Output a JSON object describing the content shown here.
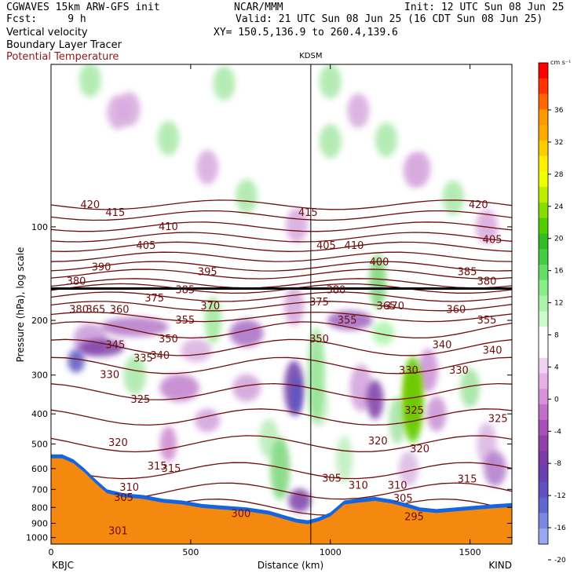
{
  "header": {
    "model": "CGWAVES 15km ARW-GFS init",
    "fcst_label": "Fcst:",
    "fcst_value": "9 h",
    "org": "NCAR/MMM",
    "init": "Init: 12 UTC Sun 08 Jun 25",
    "valid": "Valid: 21 UTC Sun 08 Jun 25 (16 CDT Sun 08 Jun 25)",
    "xy": "XY= 150.5,136.9 to 260.4,139.6",
    "field1": "Vertical velocity",
    "field2": "Boundary Layer Tracer",
    "field3": "Potential Temperature"
  },
  "colors": {
    "theta_contour": "#6e0d0d",
    "terrain": "#f5890f",
    "bl_tracer": "#8b1a1a"
  },
  "chart_data": {
    "type": "heatmap",
    "title": "KDSM",
    "xlabel": "Distance (km)",
    "ylabel": "Pressure (hPa), log scale",
    "xlim": [
      0,
      1650
    ],
    "ylim": [
      1050,
      30
    ],
    "y_scale": "log",
    "x_ticks": [
      0,
      500,
      1000,
      1500
    ],
    "x_tick_labels": [
      "0",
      "500",
      "1000",
      "1500"
    ],
    "y_ticks": [
      100,
      200,
      300,
      400,
      500,
      600,
      700,
      800,
      900,
      1000
    ],
    "y_tick_labels": [
      "100",
      "200",
      "300",
      "400",
      "500",
      "600",
      "700",
      "800",
      "900",
      "1000"
    ],
    "endpoints": {
      "left": "KBJC",
      "right": "KIND"
    },
    "marker": {
      "label": "KDSM",
      "x": 930
    },
    "colorbar": {
      "unit": "cm s⁻¹",
      "labels": [
        "36",
        "32",
        "28",
        "24",
        "20",
        "16",
        "12",
        "8",
        "4",
        "0",
        "-4",
        "-8",
        "-12",
        "-16",
        "-20"
      ],
      "colors": [
        "#ff0000",
        "#ff3300",
        "#ff6600",
        "#ff9900",
        "#ffaa00",
        "#ffcc00",
        "#ffee00",
        "#eeff00",
        "#bbee00",
        "#88dd00",
        "#55cc00",
        "#33bb22",
        "#44cc44",
        "#66dd66",
        "#88ee88",
        "#aaf5aa",
        "#ccfacc",
        "#ffffff",
        "#ffffff",
        "#f2d0f2",
        "#e6b0e6",
        "#d890d8",
        "#c070c8",
        "#a850b8",
        "#9040a8",
        "#7a3aa8",
        "#6a40b0",
        "#6050c0",
        "#6068d0",
        "#7a88e0",
        "#98a8f0"
      ]
    },
    "theta_labels": [
      {
        "x": 140,
        "p": 85,
        "v": "420"
      },
      {
        "x": 230,
        "p": 90,
        "v": "415"
      },
      {
        "x": 340,
        "p": 115,
        "v": "405"
      },
      {
        "x": 420,
        "p": 100,
        "v": "410"
      },
      {
        "x": 560,
        "p": 140,
        "v": "395"
      },
      {
        "x": 180,
        "p": 135,
        "v": "390"
      },
      {
        "x": 370,
        "p": 170,
        "v": "375"
      },
      {
        "x": 480,
        "p": 160,
        "v": "385"
      },
      {
        "x": 90,
        "p": 150,
        "v": "380"
      },
      {
        "x": 100,
        "p": 185,
        "v": "380"
      },
      {
        "x": 160,
        "p": 185,
        "v": "365"
      },
      {
        "x": 245,
        "p": 185,
        "v": "360"
      },
      {
        "x": 570,
        "p": 180,
        "v": "370"
      },
      {
        "x": 480,
        "p": 200,
        "v": "355"
      },
      {
        "x": 420,
        "p": 230,
        "v": "350"
      },
      {
        "x": 230,
        "p": 240,
        "v": "345"
      },
      {
        "x": 390,
        "p": 260,
        "v": "340"
      },
      {
        "x": 330,
        "p": 265,
        "v": "335"
      },
      {
        "x": 210,
        "p": 300,
        "v": "330"
      },
      {
        "x": 320,
        "p": 360,
        "v": "325"
      },
      {
        "x": 240,
        "p": 495,
        "v": "320"
      },
      {
        "x": 380,
        "p": 590,
        "v": "315"
      },
      {
        "x": 430,
        "p": 600,
        "v": "315"
      },
      {
        "x": 280,
        "p": 690,
        "v": "310"
      },
      {
        "x": 260,
        "p": 745,
        "v": "305"
      },
      {
        "x": 680,
        "p": 840,
        "v": "300"
      },
      {
        "x": 920,
        "p": 90,
        "v": "415"
      },
      {
        "x": 985,
        "p": 115,
        "v": "405"
      },
      {
        "x": 1085,
        "p": 115,
        "v": "410"
      },
      {
        "x": 1175,
        "p": 130,
        "v": "400"
      },
      {
        "x": 1020,
        "p": 160,
        "v": "380"
      },
      {
        "x": 960,
        "p": 175,
        "v": "375"
      },
      {
        "x": 1060,
        "p": 200,
        "v": "355"
      },
      {
        "x": 960,
        "p": 230,
        "v": "350"
      },
      {
        "x": 1005,
        "p": 645,
        "v": "305"
      },
      {
        "x": 1100,
        "p": 680,
        "v": "310"
      },
      {
        "x": 1240,
        "p": 680,
        "v": "310"
      },
      {
        "x": 1170,
        "p": 490,
        "v": "320"
      },
      {
        "x": 1320,
        "p": 520,
        "v": "320"
      },
      {
        "x": 1300,
        "p": 390,
        "v": "325"
      },
      {
        "x": 1280,
        "p": 290,
        "v": "330"
      },
      {
        "x": 1460,
        "p": 290,
        "v": "330"
      },
      {
        "x": 1400,
        "p": 240,
        "v": "340"
      },
      {
        "x": 1580,
        "p": 250,
        "v": "340"
      },
      {
        "x": 1450,
        "p": 185,
        "v": "360"
      },
      {
        "x": 1560,
        "p": 200,
        "v": "355"
      },
      {
        "x": 1530,
        "p": 85,
        "v": "420"
      },
      {
        "x": 1580,
        "p": 110,
        "v": "405"
      },
      {
        "x": 1560,
        "p": 150,
        "v": "380"
      },
      {
        "x": 1490,
        "p": 140,
        "v": "385"
      },
      {
        "x": 1230,
        "p": 180,
        "v": "370"
      },
      {
        "x": 1200,
        "p": 180,
        "v": "365"
      },
      {
        "x": 1260,
        "p": 750,
        "v": "305"
      },
      {
        "x": 1490,
        "p": 650,
        "v": "315"
      },
      {
        "x": 1600,
        "p": 415,
        "v": "325"
      },
      {
        "x": 1300,
        "p": 860,
        "v": "295"
      },
      {
        "x": 240,
        "p": 955,
        "v": "301"
      }
    ]
  }
}
